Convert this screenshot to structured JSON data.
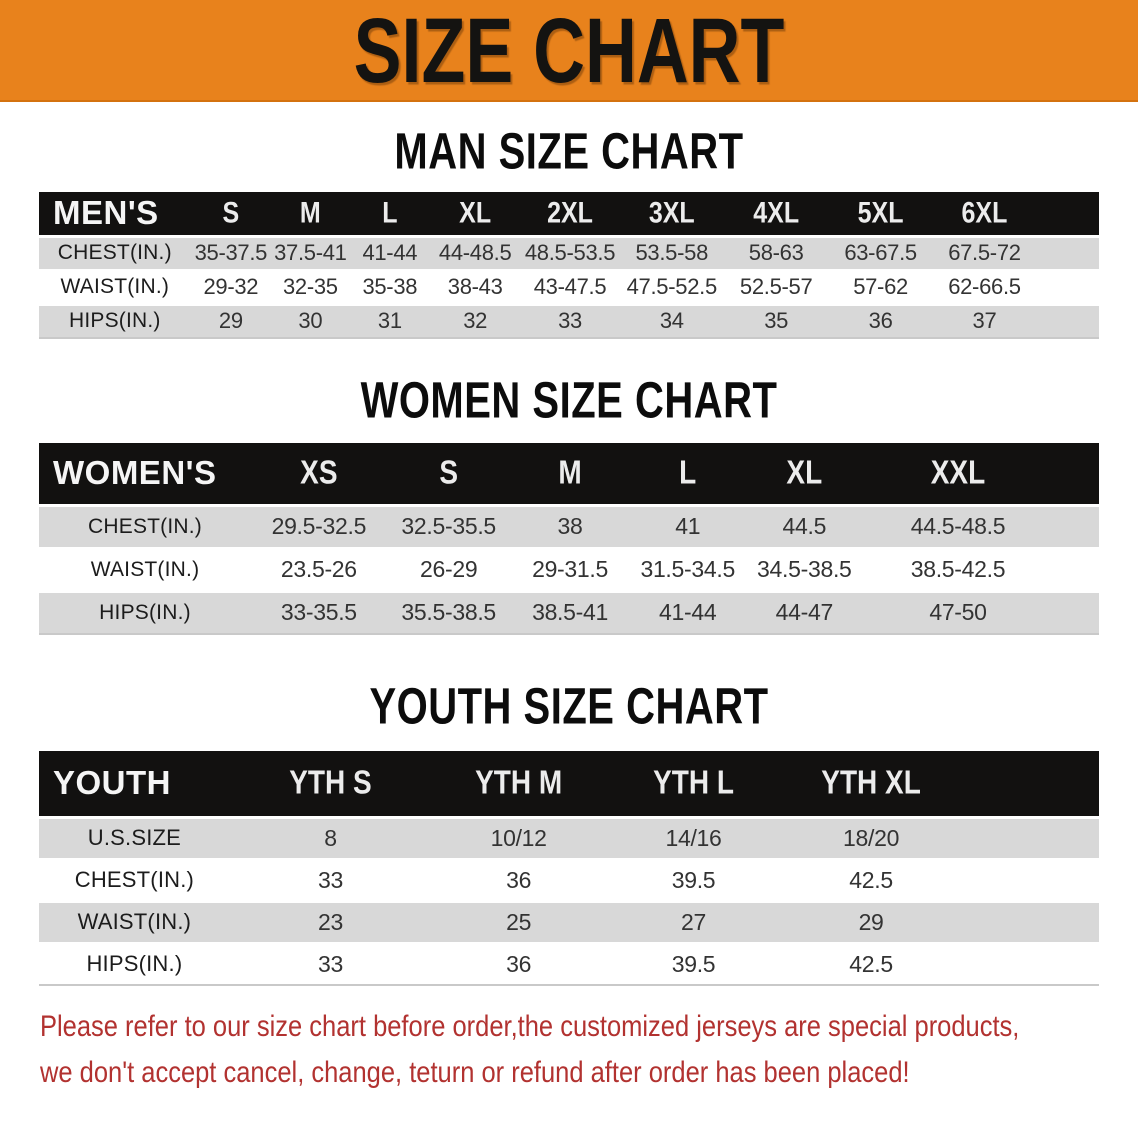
{
  "banner": {
    "title": "SIZE CHART"
  },
  "colors": {
    "accent_orange": "#E8821C",
    "header_black": "#121110",
    "row_gray": "#D8D8D8",
    "disclaimer_red": "#B23230"
  },
  "sections": [
    {
      "heading": "MAN SIZE CHART",
      "group_label": "MEN'S",
      "sizes": [
        "S",
        "M",
        "L",
        "XL",
        "2XL",
        "3XL",
        "4XL",
        "5XL",
        "6XL"
      ],
      "rows": [
        {
          "label": "CHEST(IN.)",
          "values": [
            "35-37.5",
            "37.5-41",
            "41-44",
            "44-48.5",
            "48.5-53.5",
            "53.5-58",
            "58-63",
            "63-67.5",
            "67.5-72"
          ]
        },
        {
          "label": "WAIST(IN.)",
          "values": [
            "29-32",
            "32-35",
            "35-38",
            "38-43",
            "43-47.5",
            "47.5-52.5",
            "52.5-57",
            "57-62",
            "62-66.5"
          ]
        },
        {
          "label": "HIPS(IN.)",
          "values": [
            "29",
            "30",
            "31",
            "32",
            "33",
            "34",
            "35",
            "36",
            "37"
          ]
        }
      ]
    },
    {
      "heading": "WOMEN SIZE CHART",
      "group_label": "WOMEN'S",
      "sizes": [
        "XS",
        "S",
        "M",
        "L",
        "XL",
        "XXL"
      ],
      "rows": [
        {
          "label": "CHEST(IN.)",
          "values": [
            "29.5-32.5",
            "32.5-35.5",
            "38",
            "41",
            "44.5",
            "44.5-48.5"
          ]
        },
        {
          "label": "WAIST(IN.)",
          "values": [
            "23.5-26",
            "26-29",
            "29-31.5",
            "31.5-34.5",
            "34.5-38.5",
            "38.5-42.5"
          ]
        },
        {
          "label": "HIPS(IN.)",
          "values": [
            "33-35.5",
            "35.5-38.5",
            "38.5-41",
            "41-44",
            "44-47",
            "47-50"
          ]
        }
      ]
    },
    {
      "heading": "YOUTH SIZE CHART",
      "group_label": "YOUTH",
      "sizes": [
        "YTH S",
        "YTH M",
        "YTH L",
        "YTH XL"
      ],
      "rows": [
        {
          "label": "U.S.SIZE",
          "values": [
            "8",
            "10/12",
            "14/16",
            "18/20"
          ]
        },
        {
          "label": "CHEST(IN.)",
          "values": [
            "33",
            "36",
            "39.5",
            "42.5"
          ]
        },
        {
          "label": "WAIST(IN.)",
          "values": [
            "23",
            "25",
            "27",
            "29"
          ]
        },
        {
          "label": "HIPS(IN.)",
          "values": [
            "33",
            "36",
            "39.5",
            "42.5"
          ]
        }
      ]
    }
  ],
  "disclaimer": {
    "lines": [
      "Please refer to our size chart before order,the customized jerseys are special products,",
      "we don't accept cancel, change, teturn or refund after order has been placed!"
    ]
  }
}
